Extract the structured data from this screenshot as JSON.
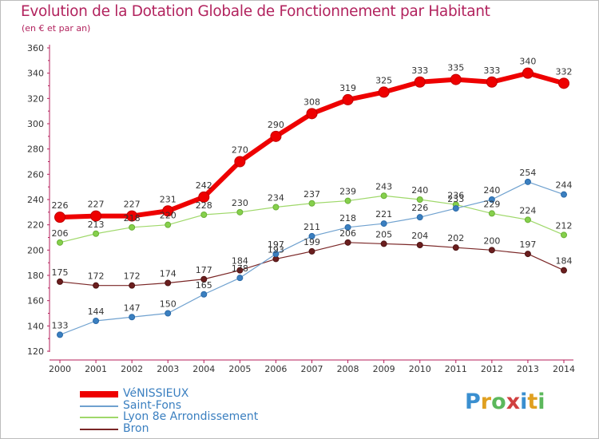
{
  "title": "Evolution de la Dotation Globale de Fonctionnement par Habitant",
  "subtitle": "(en € et par an)",
  "brand": {
    "logo_text": "Proxiti",
    "letters": [
      {
        "ch": "P",
        "color": "#3a8fd0"
      },
      {
        "ch": "r",
        "color": "#e0a020"
      },
      {
        "ch": "o",
        "color": "#5cb85c"
      },
      {
        "ch": "x",
        "color": "#d04040"
      },
      {
        "ch": "i",
        "color": "#3a8fd0"
      },
      {
        "ch": "t",
        "color": "#e0a020"
      },
      {
        "ch": "i",
        "color": "#5cb85c"
      }
    ]
  },
  "chart_data": {
    "type": "line",
    "title": "Evolution de la Dotation Globale de Fonctionnement par Habitant",
    "subtitle": "(en € et par an)",
    "xlabel": "",
    "ylabel": "",
    "x": [
      "2000",
      "2001",
      "2002",
      "2003",
      "2004",
      "2005",
      "2006",
      "2007",
      "2008",
      "2009",
      "2010",
      "2011",
      "2012",
      "2013",
      "2014"
    ],
    "ylim": [
      120,
      360
    ],
    "yticks": [
      120,
      140,
      160,
      180,
      200,
      220,
      240,
      260,
      280,
      300,
      320,
      340,
      360
    ],
    "grid": false,
    "legend_position": "bottom-left",
    "series": [
      {
        "name": "VéNISSIEUX",
        "color": "#ee0000",
        "values": [
          226,
          227,
          227,
          231,
          242,
          270,
          290,
          308,
          319,
          325,
          333,
          335,
          333,
          340,
          332
        ]
      },
      {
        "name": "Saint-Fons",
        "color": "#6fa1cf",
        "values": [
          133,
          144,
          147,
          150,
          165,
          178,
          197,
          211,
          218,
          221,
          226,
          233,
          240,
          254,
          244
        ]
      },
      {
        "name": "Lyon 8e  Arrondissement",
        "color": "#9fd86a",
        "values": [
          206,
          213,
          218,
          220,
          228,
          230,
          234,
          237,
          239,
          243,
          240,
          236,
          229,
          224,
          212
        ]
      },
      {
        "name": "Bron",
        "color": "#7a2626",
        "values": [
          175,
          172,
          172,
          174,
          177,
          184,
          193,
          199,
          206,
          205,
          204,
          202,
          200,
          197,
          184
        ]
      }
    ]
  }
}
